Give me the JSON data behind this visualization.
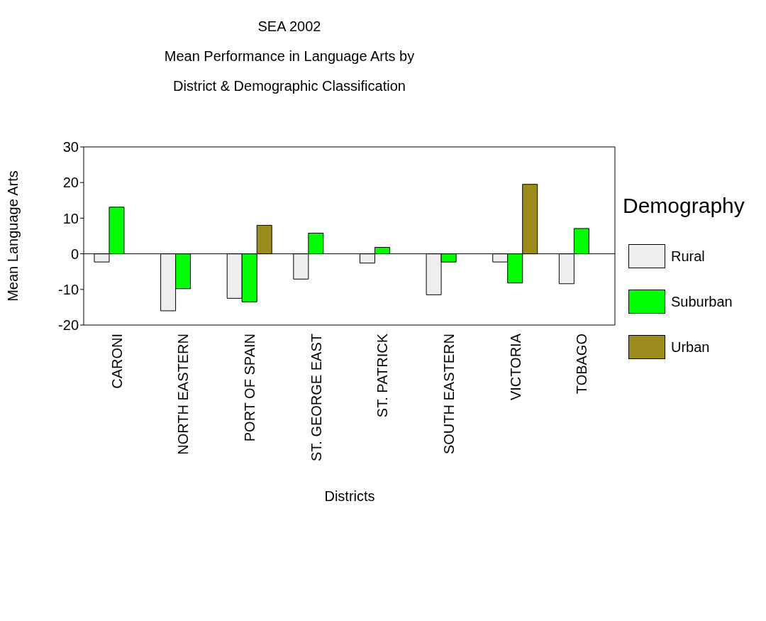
{
  "chart_data": {
    "type": "bar",
    "title": "SEA 2002",
    "subtitle": "Mean Performance in Language Arts by\nDistrict & Demographic Classification",
    "xlabel": "Districts",
    "ylabel": "Mean Language Arts",
    "legend_title": "Demography",
    "categories": [
      "CARONI",
      "NORTH EASTERN",
      "PORT OF SPAIN",
      "ST. GEORGE EAST",
      "ST. PATRICK",
      "SOUTH EASTERN",
      "VICTORIA",
      "TOBAGO"
    ],
    "series": [
      {
        "name": "Rural",
        "color": "#eeeeee",
        "values": [
          -2.3,
          -16,
          -12.5,
          -7.1,
          -2.6,
          -11.5,
          -2.3,
          -8.4
        ]
      },
      {
        "name": "Suburban",
        "color": "#00ff00",
        "values": [
          13.1,
          -9.8,
          -13.5,
          5.8,
          1.8,
          -2.3,
          -8.2,
          7.1
        ]
      },
      {
        "name": "Urban",
        "color": "#9c8c1c",
        "values": [
          null,
          null,
          8,
          null,
          null,
          null,
          19.5,
          null
        ]
      }
    ],
    "ref_lines": [
      {
        "axis": "y",
        "value": 0,
        "color": "#000000"
      }
    ],
    "ylim": [
      -20,
      30
    ],
    "yticks": [
      -20,
      -10,
      0,
      10,
      20,
      30
    ],
    "grid": false,
    "legend": "right"
  }
}
